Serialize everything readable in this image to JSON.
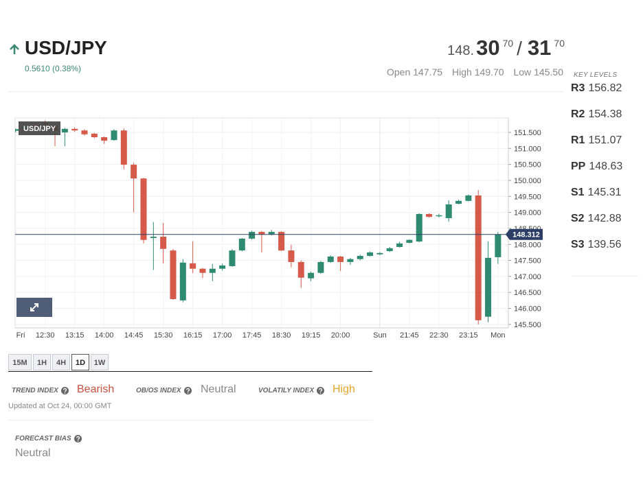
{
  "header": {
    "symbol": "USD/JPY",
    "change": "0.5610 (0.38%)",
    "quote": {
      "prefix": "148.",
      "bid": "30",
      "bid_pip": "70",
      "separator": "/",
      "ask": "31",
      "ask_pip": "70"
    },
    "ohl": {
      "open_label": "Open",
      "open": "147.75",
      "high_label": "High",
      "high": "149.70",
      "low_label": "Low",
      "low": "145.50"
    }
  },
  "key_levels": {
    "title": "KEY LEVELS",
    "levels": [
      {
        "name": "R3",
        "value": 156.82
      },
      {
        "name": "R2",
        "value": 154.38
      },
      {
        "name": "R1",
        "value": 151.07
      },
      {
        "name": "PP",
        "value": 148.63
      },
      {
        "name": "S1",
        "value": 145.31
      },
      {
        "name": "S2",
        "value": 142.88
      },
      {
        "name": "S3",
        "value": 139.56
      }
    ]
  },
  "chart_data": {
    "type": "candlestick",
    "label": "USD/JPY",
    "categories": [
      "Fri",
      null,
      null,
      "12:30",
      null,
      null,
      "13:15",
      null,
      null,
      "14:00",
      null,
      null,
      "14:45",
      null,
      null,
      "15:30",
      null,
      null,
      "16:15",
      null,
      null,
      "17:00",
      null,
      null,
      "17:45",
      null,
      null,
      "18:30",
      null,
      null,
      "19:15",
      null,
      null,
      "20:00",
      null,
      null,
      null,
      "Sun",
      null,
      null,
      "21:45",
      null,
      null,
      "22:30",
      null,
      null,
      "23:15",
      null,
      null,
      "Mon"
    ],
    "open": [
      151.55,
      151.6,
      151.72,
      151.78,
      151.71,
      151.5,
      151.61,
      151.56,
      151.46,
      151.35,
      151.26,
      151.56,
      150.49,
      150.06,
      148.2,
      148.24,
      147.81,
      146.25,
      147.41,
      147.24,
      147.11,
      147.24,
      147.32,
      147.81,
      148.18,
      148.39,
      148.31,
      148.39,
      147.81,
      147.45,
      146.94,
      147.11,
      147.45,
      147.62,
      147.45,
      147.54,
      147.64,
      147.69,
      147.79,
      147.92,
      148.05,
      148.09,
      148.95,
      148.88,
      148.82,
      149.27,
      149.36,
      149.53,
      145.74,
      147.6
    ],
    "high": [
      151.62,
      151.72,
      151.8,
      151.88,
      151.75,
      151.64,
      151.65,
      151.6,
      151.48,
      151.37,
      151.6,
      151.62,
      150.55,
      150.08,
      148.7,
      148.67,
      147.86,
      147.54,
      148.1,
      147.26,
      147.39,
      147.4,
      147.85,
      148.2,
      148.43,
      148.42,
      148.45,
      148.42,
      147.99,
      147.5,
      147.15,
      147.48,
      147.66,
      147.64,
      147.58,
      147.68,
      147.78,
      147.76,
      147.92,
      148.08,
      148.16,
      148.97,
      148.97,
      148.96,
      149.38,
      149.4,
      149.56,
      149.7,
      148.1,
      148.39
    ],
    "low": [
      151.5,
      151.55,
      151.6,
      151.7,
      151.07,
      151.07,
      151.52,
      151.4,
      151.32,
      151.14,
      151.24,
      150.35,
      149.0,
      148.03,
      147.2,
      147.4,
      146.27,
      146.19,
      147.1,
      146.95,
      146.85,
      147.18,
      147.3,
      147.78,
      148.15,
      147.75,
      148.28,
      147.79,
      147.28,
      146.64,
      146.85,
      147.08,
      147.42,
      147.17,
      147.36,
      147.5,
      147.62,
      147.66,
      147.76,
      147.9,
      148.03,
      148.07,
      148.84,
      148.84,
      148.71,
      149.25,
      149.34,
      145.5,
      145.56,
      147.39
    ],
    "close": [
      151.6,
      151.68,
      151.65,
      151.74,
      151.56,
      151.61,
      151.56,
      151.44,
      151.35,
      151.24,
      151.56,
      150.49,
      150.06,
      148.14,
      148.24,
      147.86,
      146.29,
      147.43,
      147.24,
      147.11,
      147.24,
      147.34,
      147.81,
      148.18,
      148.39,
      148.31,
      148.39,
      147.81,
      147.45,
      146.96,
      147.11,
      147.45,
      147.62,
      147.45,
      147.54,
      147.64,
      147.75,
      147.73,
      147.88,
      148.03,
      148.14,
      148.95,
      148.86,
      148.91,
      149.25,
      149.36,
      149.53,
      145.63,
      147.58,
      148.31
    ],
    "up_color": "#2e8a70",
    "down_color": "#d65a4a",
    "last_price": 148.312,
    "last_price_color": "#2c3e66",
    "ylim": [
      145.39,
      151.95
    ],
    "yticks": [
      {
        "value": 145.5,
        "label": "145.500"
      },
      {
        "value": 146,
        "label": "146.000"
      },
      {
        "value": 146.5,
        "label": "146.500"
      },
      {
        "value": 147,
        "label": "147.000"
      },
      {
        "value": 147.5,
        "label": "147.500"
      },
      {
        "value": 148,
        "label": "148.000"
      },
      {
        "value": 148.5,
        "label": "148.500"
      },
      {
        "value": 149,
        "label": "149.000"
      },
      {
        "value": 149.5,
        "label": "149.500"
      },
      {
        "value": 150,
        "label": "150.000"
      },
      {
        "value": 150.5,
        "label": "150.500"
      },
      {
        "value": 151,
        "label": "151.000"
      },
      {
        "value": 151.5,
        "label": "151.500"
      }
    ],
    "grid": true
  },
  "timeframes": [
    "15M",
    "1H",
    "4H",
    "1D",
    "1W"
  ],
  "indices": [
    {
      "label": "TREND INDEX",
      "value": "Bearish"
    },
    {
      "label": "OB/OS INDEX",
      "value": "Neutral"
    },
    {
      "label": "VOLATILY INDEX",
      "value": "High"
    }
  ],
  "updated": "Updated at Oct 24, 00:00 GMT",
  "forecast": {
    "label": "FORECAST BIAS",
    "value": "Neutral"
  }
}
